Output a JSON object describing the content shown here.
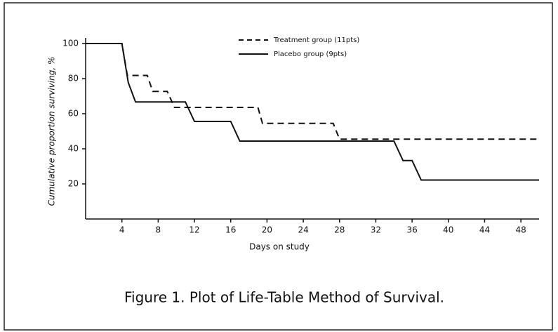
{
  "chart_data": {
    "type": "line",
    "caption": "Figure 1. Plot of Life-Table Method of Survival.",
    "x_label": "Days on study",
    "y_label": "Cumulative proportion surviving, %",
    "xlim": [
      0,
      50
    ],
    "xticks": [
      4,
      8,
      12,
      16,
      20,
      24,
      28,
      32,
      36,
      40,
      44,
      48
    ],
    "ylim": [
      0,
      100
    ],
    "yticks": [
      20,
      40,
      60,
      80,
      100
    ],
    "series": [
      {
        "name": "Treatment group (11pts)",
        "color": "#111111",
        "dash": true,
        "x": [
          0,
          4,
          4.6,
          6.8,
          7.4,
          9,
          9.8,
          19,
          19.5,
          27.3,
          28,
          50
        ],
        "values": [
          100,
          100,
          81.8,
          81.8,
          72.7,
          72.7,
          63.6,
          63.6,
          54.5,
          54.5,
          45.5,
          45.5
        ]
      },
      {
        "name": "Placebo group (9pts)",
        "color": "#111111",
        "dash": false,
        "x": [
          0,
          4,
          4.7,
          5.5,
          11,
          12,
          16,
          17,
          34,
          35,
          36,
          37,
          50
        ],
        "values": [
          100,
          100,
          77.8,
          66.7,
          66.7,
          55.6,
          55.6,
          44.4,
          44.4,
          33.3,
          33.3,
          22.2,
          22.2
        ]
      }
    ]
  }
}
